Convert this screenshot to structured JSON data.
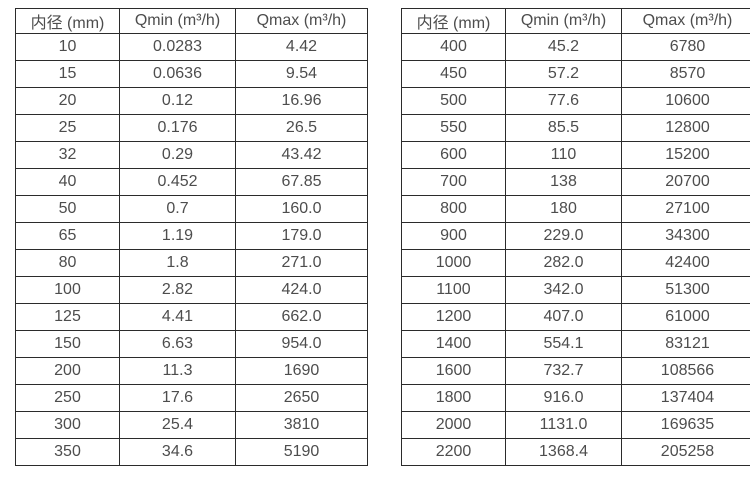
{
  "page": {
    "background_color": "#ffffff",
    "border_color": "#2b2b2b",
    "text_color": "#4d4d4d"
  },
  "tables": [
    {
      "name": "flow-rate-table-small-diameters",
      "headers": [
        "内径 (mm)",
        "Qmin (m³/h)",
        "Qmax (m³/h)"
      ],
      "rows": [
        [
          "10",
          "0.0283",
          "4.42"
        ],
        [
          "15",
          "0.0636",
          "9.54"
        ],
        [
          "20",
          "0.12",
          "16.96"
        ],
        [
          "25",
          "0.176",
          "26.5"
        ],
        [
          "32",
          "0.29",
          "43.42"
        ],
        [
          "40",
          "0.452",
          "67.85"
        ],
        [
          "50",
          "0.7",
          "160.0"
        ],
        [
          "65",
          "1.19",
          "179.0"
        ],
        [
          "80",
          "1.8",
          "271.0"
        ],
        [
          "100",
          "2.82",
          "424.0"
        ],
        [
          "125",
          "4.41",
          "662.0"
        ],
        [
          "150",
          "6.63",
          "954.0"
        ],
        [
          "200",
          "11.3",
          "1690"
        ],
        [
          "250",
          "17.6",
          "2650"
        ],
        [
          "300",
          "25.4",
          "3810"
        ],
        [
          "350",
          "34.6",
          "5190"
        ]
      ]
    },
    {
      "name": "flow-rate-table-large-diameters",
      "headers": [
        "内径 (mm)",
        "Qmin (m³/h)",
        "Qmax (m³/h)"
      ],
      "rows": [
        [
          "400",
          "45.2",
          "6780"
        ],
        [
          "450",
          "57.2",
          "8570"
        ],
        [
          "500",
          "77.6",
          "10600"
        ],
        [
          "550",
          "85.5",
          "12800"
        ],
        [
          "600",
          "110",
          "15200"
        ],
        [
          "700",
          "138",
          "20700"
        ],
        [
          "800",
          "180",
          "27100"
        ],
        [
          "900",
          "229.0",
          "34300"
        ],
        [
          "1000",
          "282.0",
          "42400"
        ],
        [
          "1100",
          "342.0",
          "51300"
        ],
        [
          "1200",
          "407.0",
          "61000"
        ],
        [
          "1400",
          "554.1",
          "83121"
        ],
        [
          "1600",
          "732.7",
          "108566"
        ],
        [
          "1800",
          "916.0",
          "137404"
        ],
        [
          "2000",
          "1131.0",
          "169635"
        ],
        [
          "2200",
          "1368.4",
          "205258"
        ]
      ]
    }
  ]
}
